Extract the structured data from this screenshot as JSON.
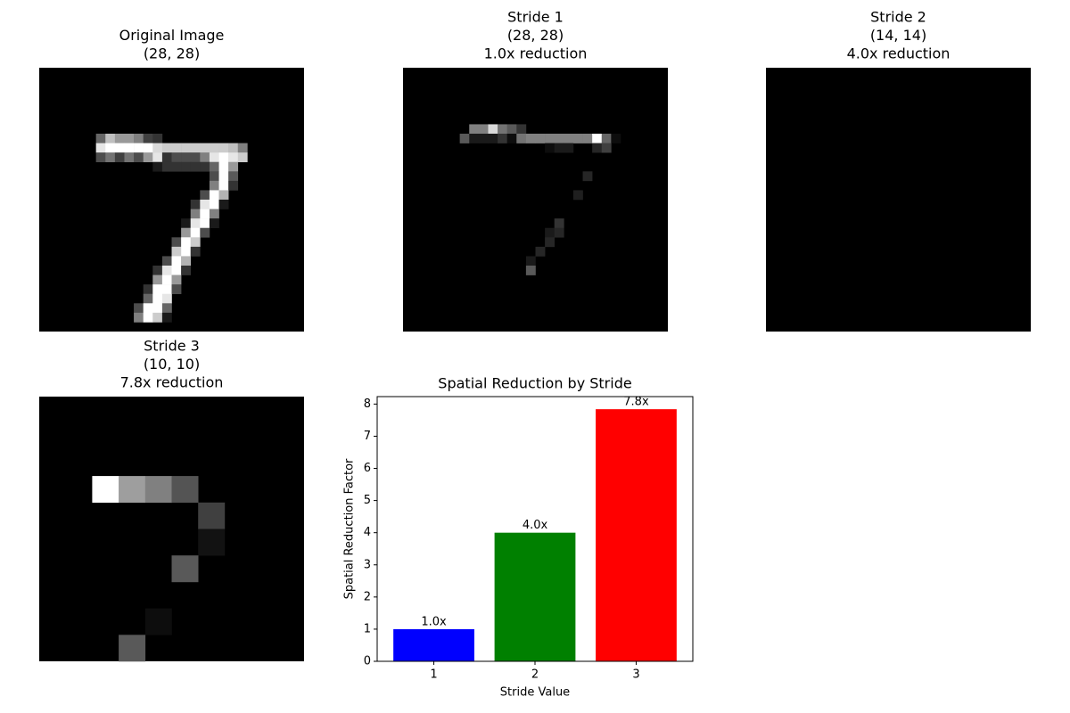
{
  "chart_data": [
    {
      "type": "image",
      "title": [
        "Original Image",
        "(28, 28)"
      ],
      "rows": 28,
      "cols": 28,
      "pixels": [
        [
          7,
          6,
          0.4
        ],
        [
          7,
          7,
          0.75
        ],
        [
          7,
          8,
          0.6
        ],
        [
          7,
          9,
          0.6
        ],
        [
          7,
          10,
          0.5
        ],
        [
          7,
          11,
          0.25
        ],
        [
          7,
          12,
          0.2
        ],
        [
          8,
          6,
          0.9
        ],
        [
          8,
          7,
          1
        ],
        [
          8,
          8,
          1
        ],
        [
          8,
          9,
          1
        ],
        [
          8,
          10,
          1
        ],
        [
          8,
          11,
          1
        ],
        [
          8,
          12,
          0.85
        ],
        [
          8,
          13,
          0.8
        ],
        [
          8,
          14,
          0.8
        ],
        [
          8,
          15,
          0.8
        ],
        [
          8,
          16,
          0.8
        ],
        [
          8,
          17,
          0.8
        ],
        [
          8,
          18,
          0.8
        ],
        [
          8,
          19,
          0.8
        ],
        [
          8,
          20,
          0.75
        ],
        [
          8,
          21,
          0.5
        ],
        [
          9,
          6,
          0.3
        ],
        [
          9,
          7,
          0.45
        ],
        [
          9,
          8,
          0.25
        ],
        [
          9,
          9,
          0.45
        ],
        [
          9,
          10,
          0.3
        ],
        [
          9,
          11,
          0.6
        ],
        [
          9,
          12,
          0.9
        ],
        [
          9,
          13,
          0.2
        ],
        [
          9,
          14,
          0.3
        ],
        [
          9,
          15,
          0.3
        ],
        [
          9,
          16,
          0.3
        ],
        [
          9,
          17,
          0.5
        ],
        [
          9,
          18,
          0.9
        ],
        [
          9,
          19,
          1
        ],
        [
          9,
          20,
          0.9
        ],
        [
          9,
          21,
          0.8
        ],
        [
          10,
          12,
          0.1
        ],
        [
          10,
          13,
          0.2
        ],
        [
          10,
          14,
          0.2
        ],
        [
          10,
          15,
          0.2
        ],
        [
          10,
          16,
          0.2
        ],
        [
          10,
          17,
          0.2
        ],
        [
          10,
          18,
          0.4
        ],
        [
          10,
          19,
          1
        ],
        [
          10,
          20,
          0.6
        ],
        [
          11,
          18,
          0.3
        ],
        [
          11,
          19,
          1
        ],
        [
          11,
          20,
          0.35
        ],
        [
          12,
          18,
          0.5
        ],
        [
          12,
          19,
          1
        ],
        [
          12,
          20,
          0.2
        ],
        [
          13,
          17,
          0.3
        ],
        [
          13,
          18,
          1
        ],
        [
          13,
          19,
          0.7
        ],
        [
          14,
          16,
          0.2
        ],
        [
          14,
          17,
          0.9
        ],
        [
          14,
          18,
          1
        ],
        [
          14,
          19,
          0.1
        ],
        [
          15,
          16,
          0.5
        ],
        [
          15,
          17,
          1
        ],
        [
          15,
          18,
          0.5
        ],
        [
          16,
          15,
          0.1
        ],
        [
          16,
          16,
          0.9
        ],
        [
          16,
          17,
          1
        ],
        [
          16,
          18,
          0.1
        ],
        [
          17,
          15,
          0.6
        ],
        [
          17,
          16,
          1
        ],
        [
          17,
          17,
          0.3
        ],
        [
          18,
          14,
          0.3
        ],
        [
          18,
          15,
          1
        ],
        [
          18,
          16,
          0.8
        ],
        [
          19,
          14,
          0.8
        ],
        [
          19,
          15,
          1
        ],
        [
          19,
          16,
          0.2
        ],
        [
          20,
          13,
          0.3
        ],
        [
          20,
          14,
          1
        ],
        [
          20,
          15,
          0.7
        ],
        [
          21,
          12,
          0.2
        ],
        [
          21,
          13,
          0.9
        ],
        [
          21,
          14,
          1
        ],
        [
          21,
          15,
          0.2
        ],
        [
          22,
          12,
          0.6
        ],
        [
          22,
          13,
          1
        ],
        [
          22,
          14,
          0.6
        ],
        [
          23,
          11,
          0.2
        ],
        [
          23,
          12,
          1
        ],
        [
          23,
          13,
          1
        ],
        [
          23,
          14,
          0.3
        ],
        [
          24,
          11,
          0.4
        ],
        [
          24,
          12,
          1
        ],
        [
          24,
          13,
          0.9
        ],
        [
          25,
          10,
          0.3
        ],
        [
          25,
          11,
          1
        ],
        [
          25,
          12,
          1
        ],
        [
          25,
          13,
          0.4
        ],
        [
          26,
          10,
          0.5
        ],
        [
          26,
          11,
          1
        ],
        [
          26,
          12,
          0.8
        ],
        [
          26,
          13,
          0.1
        ]
      ]
    },
    {
      "type": "image",
      "title": [
        "Stride 1",
        "(28, 28)",
        "1.0x reduction"
      ],
      "rows": 28,
      "cols": 28,
      "pixels": [
        [
          6,
          7,
          0.5
        ],
        [
          6,
          8,
          0.5
        ],
        [
          6,
          9,
          0.85
        ],
        [
          6,
          10,
          0.45
        ],
        [
          6,
          11,
          0.35
        ],
        [
          6,
          12,
          0.2
        ],
        [
          7,
          6,
          0.35
        ],
        [
          7,
          7,
          0.1
        ],
        [
          7,
          8,
          0.1
        ],
        [
          7,
          9,
          0.1
        ],
        [
          7,
          10,
          0.2
        ],
        [
          7,
          11,
          0.05
        ],
        [
          7,
          12,
          0.45
        ],
        [
          7,
          13,
          0.5
        ],
        [
          7,
          14,
          0.5
        ],
        [
          7,
          15,
          0.5
        ],
        [
          7,
          16,
          0.5
        ],
        [
          7,
          17,
          0.5
        ],
        [
          7,
          18,
          0.5
        ],
        [
          7,
          19,
          0.5
        ],
        [
          7,
          20,
          1
        ],
        [
          7,
          21,
          0.4
        ],
        [
          7,
          22,
          0.05
        ],
        [
          8,
          15,
          0.05
        ],
        [
          8,
          16,
          0.1
        ],
        [
          8,
          17,
          0.1
        ],
        [
          8,
          20,
          0.15
        ],
        [
          8,
          21,
          0.25
        ],
        [
          11,
          19,
          0.15
        ],
        [
          13,
          18,
          0.12
        ],
        [
          16,
          16,
          0.2
        ],
        [
          17,
          15,
          0.1
        ],
        [
          17,
          16,
          0.15
        ],
        [
          18,
          15,
          0.15
        ],
        [
          19,
          14,
          0.15
        ],
        [
          20,
          13,
          0.1
        ],
        [
          21,
          13,
          0.35
        ]
      ]
    },
    {
      "type": "image",
      "title": [
        "Stride 2",
        "(14, 14)",
        "4.0x reduction"
      ],
      "rows": 14,
      "cols": 14,
      "pixels": []
    },
    {
      "type": "image",
      "title": [
        "Stride 3",
        "(10, 10)",
        "7.8x reduction"
      ],
      "rows": 10,
      "cols": 10,
      "pixels": [
        [
          3,
          2,
          1
        ],
        [
          3,
          3,
          0.62
        ],
        [
          3,
          4,
          0.5
        ],
        [
          3,
          5,
          0.33
        ],
        [
          4,
          6,
          0.25
        ],
        [
          5,
          6,
          0.07
        ],
        [
          6,
          5,
          0.35
        ],
        [
          8,
          4,
          0.05
        ],
        [
          9,
          3,
          0.35
        ]
      ]
    },
    {
      "type": "bar",
      "title": "Spatial Reduction by Stride",
      "x_label": "Stride Value",
      "y_label": "Spatial Reduction Factor",
      "categories": [
        "1",
        "2",
        "3"
      ],
      "values": [
        1.0,
        4.0,
        7.84
      ],
      "value_labels": [
        "1.0x",
        "4.0x",
        "7.8x"
      ],
      "colors": [
        "blue",
        "green",
        "red"
      ],
      "xlim": [
        0.44,
        3.56
      ],
      "ylim": [
        0,
        8.232
      ],
      "yticks": [
        0,
        1,
        2,
        3,
        4,
        5,
        6,
        7,
        8
      ]
    }
  ]
}
